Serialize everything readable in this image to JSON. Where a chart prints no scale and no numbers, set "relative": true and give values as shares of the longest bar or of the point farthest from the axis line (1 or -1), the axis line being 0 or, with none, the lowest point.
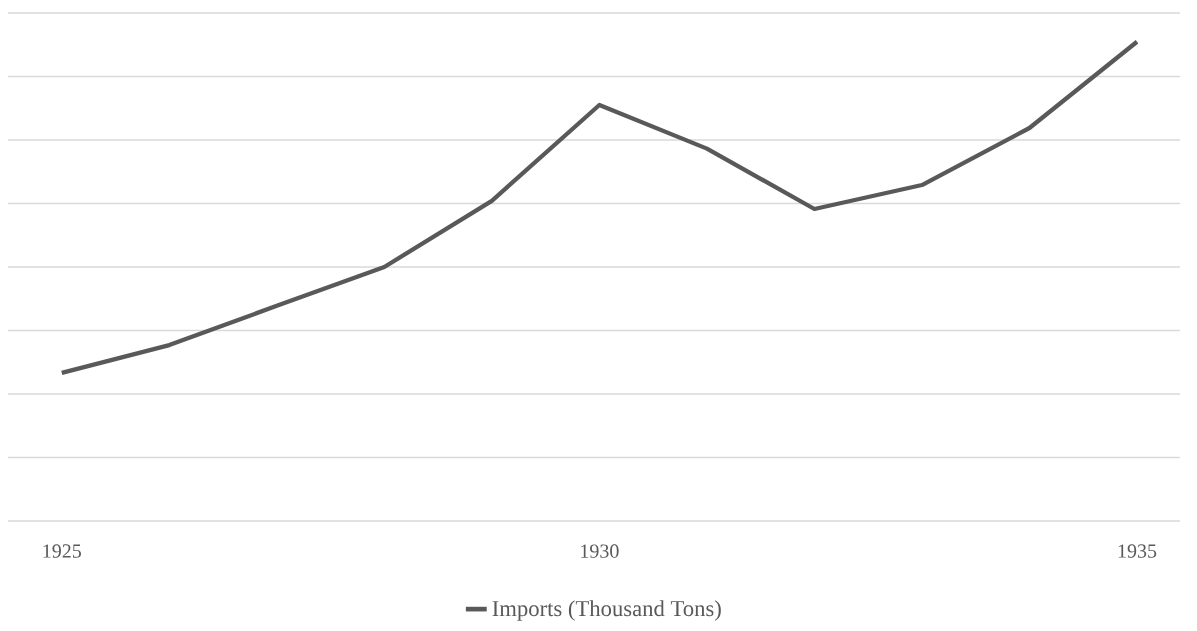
{
  "chart_data": {
    "type": "line",
    "relative": true,
    "x": [
      1925,
      1926,
      1927,
      1928,
      1929,
      1930,
      1931,
      1932,
      1933,
      1934,
      1935
    ],
    "xlim": [
      1924.5,
      1935.4
    ],
    "xticks": [
      1925,
      1930,
      1935
    ],
    "grid": "y",
    "legend": "bottom",
    "marker": "none",
    "series": [
      {
        "name": "Imports (Thousand Tons)",
        "color": "#595959",
        "values": [
          0.309,
          0.367,
          0.449,
          0.53,
          0.668,
          0.868,
          0.777,
          0.651,
          0.701,
          0.82,
          1
        ]
      }
    ]
  }
}
